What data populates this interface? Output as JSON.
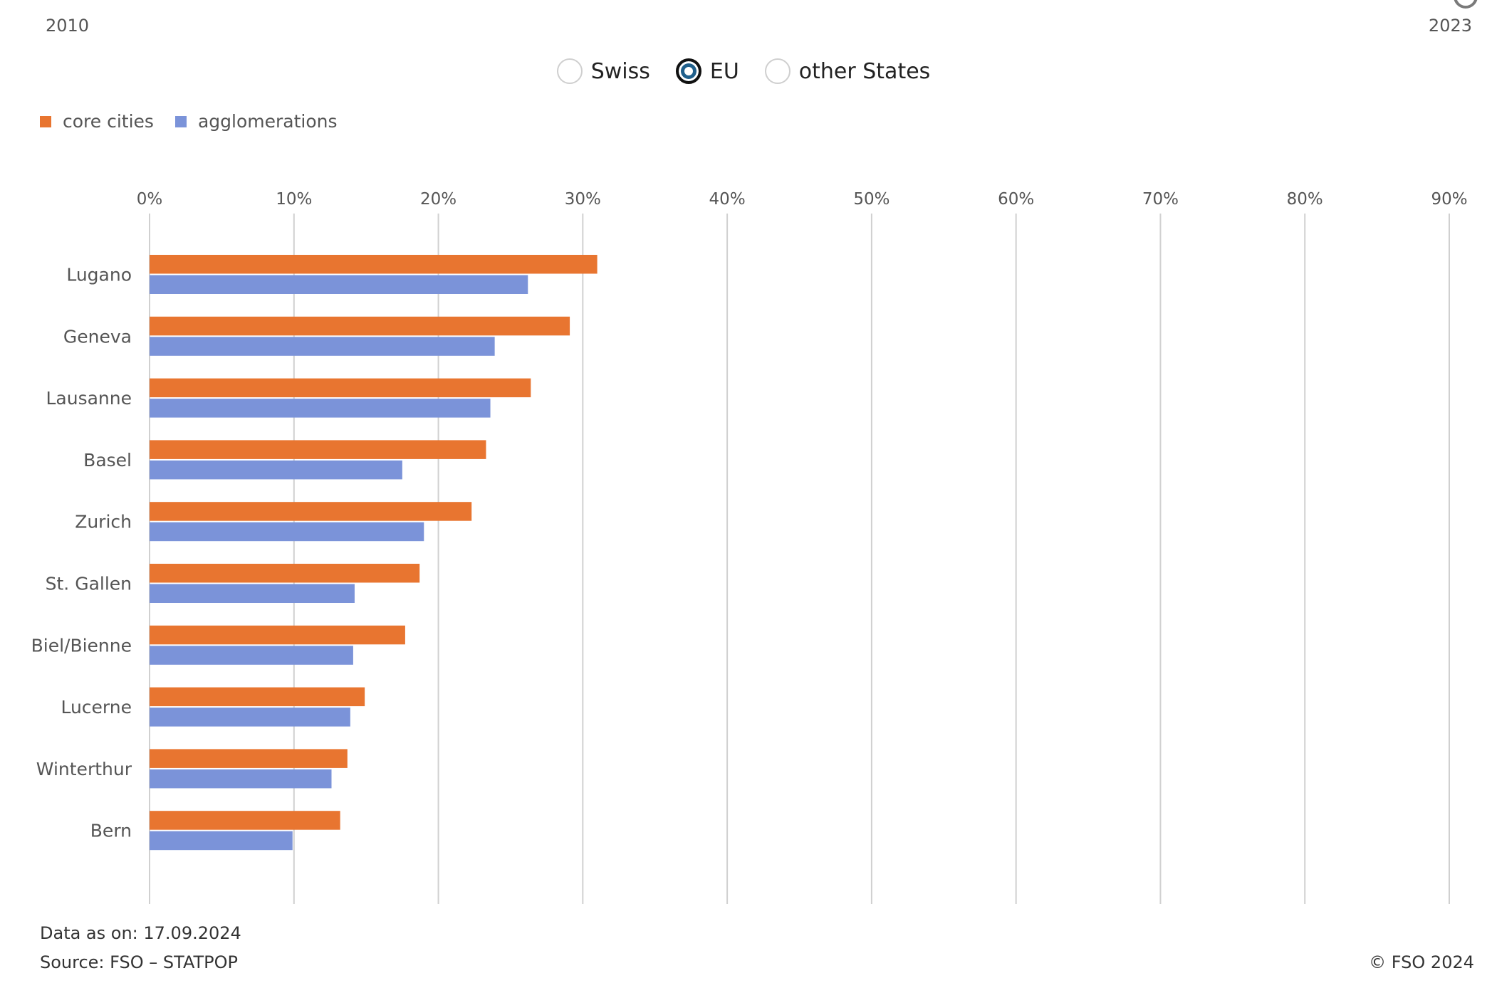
{
  "time_slider": {
    "start_year": "2010",
    "end_year": "2023"
  },
  "nationality_filter": {
    "options": [
      {
        "label": "Swiss",
        "selected": false
      },
      {
        "label": "EU",
        "selected": true
      },
      {
        "label": "other States",
        "selected": false
      }
    ]
  },
  "colors": {
    "core_cities": "#e87530",
    "agglomerations": "#7b93d9",
    "grid": "#d0d0d0",
    "radio_selected": "#1f5f8b"
  },
  "chart_data": {
    "type": "bar",
    "orientation": "horizontal",
    "categories": [
      "Lugano",
      "Geneva",
      "Lausanne",
      "Basel",
      "Zurich",
      "St. Gallen",
      "Biel/Bienne",
      "Lucerne",
      "Winterthur",
      "Bern"
    ],
    "series": [
      {
        "name": "core cities",
        "values": [
          31.0,
          29.1,
          26.4,
          23.3,
          22.3,
          18.7,
          17.7,
          14.9,
          13.7,
          13.2
        ]
      },
      {
        "name": "agglomerations",
        "values": [
          26.2,
          23.9,
          23.6,
          17.5,
          19.0,
          14.2,
          14.1,
          13.9,
          12.6,
          9.9
        ]
      }
    ],
    "xlim": [
      0,
      90
    ],
    "ticks": [
      "0%",
      "10%",
      "20%",
      "30%",
      "40%",
      "50%",
      "60%",
      "70%",
      "80%",
      "90%"
    ],
    "tick_values": [
      0,
      10,
      20,
      30,
      40,
      50,
      60,
      70,
      80,
      90
    ],
    "grid": true,
    "legend_position": "top-left"
  },
  "footer": {
    "data_date": "Data as on: 17.09.2024",
    "source": "Source: FSO – STATPOP",
    "copyright": "© FSO 2024"
  }
}
